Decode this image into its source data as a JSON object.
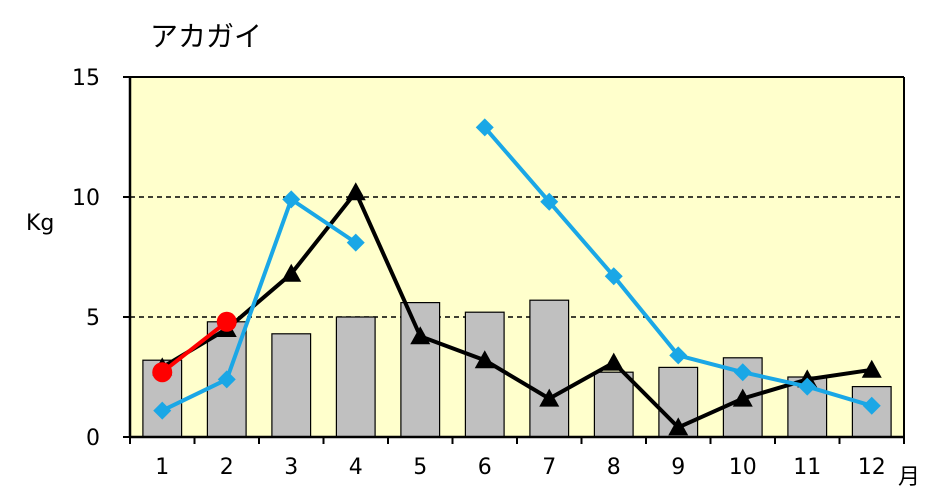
{
  "chart_data": {
    "type": "bar",
    "title": "アカガイ",
    "ylabel": "Kg",
    "xlabel": "月",
    "ylim": [
      0,
      15
    ],
    "yticks": [
      0,
      5,
      10,
      15
    ],
    "grid": "horizontal-dashed",
    "categories": [
      "1",
      "2",
      "3",
      "4",
      "5",
      "6",
      "7",
      "8",
      "9",
      "10",
      "11",
      "12"
    ],
    "colors": {
      "plot_background": "#ffffcc",
      "bar_fill": "#c0c0c0",
      "black_line": "#000000",
      "blue_line": "#1aa7e6",
      "red_line": "#ff0000"
    },
    "bars": {
      "values": [
        3.2,
        4.8,
        4.3,
        5.0,
        5.6,
        5.2,
        5.7,
        2.7,
        2.9,
        3.3,
        2.5,
        2.1
      ]
    },
    "series": [
      {
        "marker": "triangle",
        "color": "#000000",
        "values": [
          2.9,
          4.5,
          6.8,
          10.2,
          4.2,
          3.2,
          1.6,
          3.1,
          0.4,
          1.6,
          2.4,
          2.8
        ]
      },
      {
        "marker": "diamond",
        "color": "#1aa7e6",
        "values": [
          1.1,
          2.4,
          9.9,
          8.1,
          null,
          12.9,
          9.8,
          6.7,
          3.4,
          2.7,
          2.1,
          1.3
        ]
      },
      {
        "marker": "circle",
        "color": "#ff0000",
        "values": [
          2.7,
          4.8,
          null,
          null,
          null,
          null,
          null,
          null,
          null,
          null,
          null,
          null
        ]
      }
    ]
  }
}
